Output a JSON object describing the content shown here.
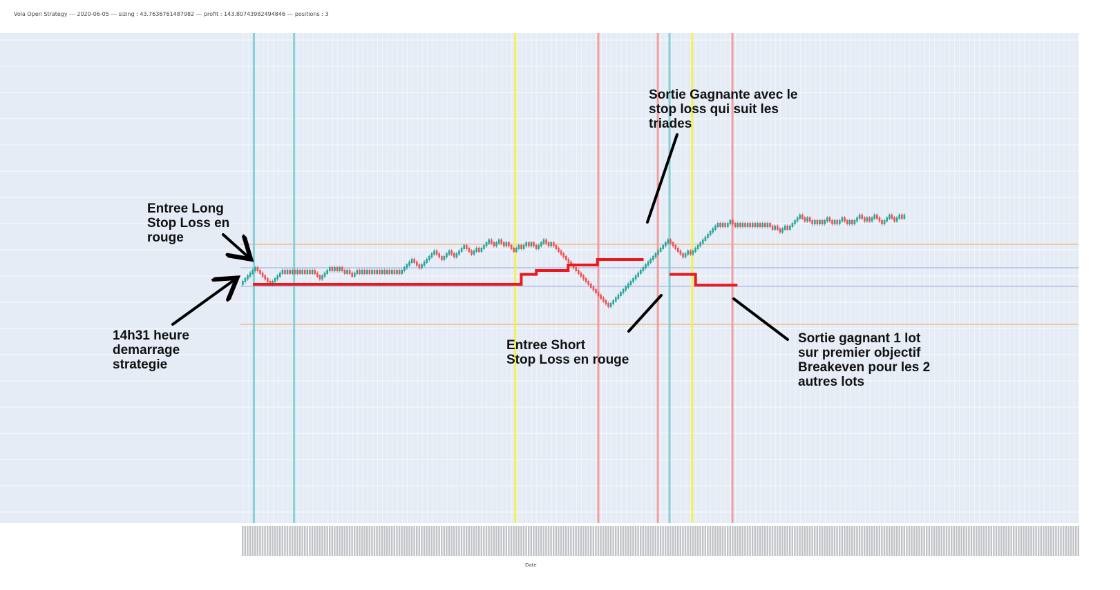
{
  "page": {
    "title": "Vola Open Strategy --- 2020-06-05 --- sizing : 43.7636761487982 --- profit : 143.80743982494846 --- positions : 3"
  },
  "colors": {
    "plot_bg": "#e5ecf6",
    "up_brick": "#26a69a",
    "down_brick": "#ef5350",
    "stop_loss": "#e8191f",
    "entry_long_line": "#7ecfd3",
    "entry_short_line": "#f4f142",
    "exit_line": "#f19a9a",
    "orange_level": "#f2b37a",
    "blue_level": "#a9b4e6",
    "arrow": "#000000"
  },
  "annotations": {
    "long": "Entree Long\nStop Loss en\nrouge",
    "start": "14h31 heure\ndemarrage\nstrategie",
    "short": "Entree Short\nStop Loss en rouge",
    "gagnante": "Sortie Gagnante avec le\nstop loss qui suit les\ntriades",
    "lot": "Sortie gagnant 1 lot\nsur premier objectif\nBreakeven pour les 2\nautres lots"
  },
  "chart_data": {
    "type": "renko",
    "xlabel": "Date",
    "ylabel": "",
    "grid": true,
    "legend": "none",
    "brick_size": 1,
    "levels": {
      "range_top": 23,
      "range_bottom": 3,
      "long_entry": 15,
      "short_entry": 11
    },
    "path": [
      [
        0,
        11
      ],
      [
        6,
        17
      ],
      [
        4,
        13
      ],
      [
        1,
        11
      ],
      [
        6,
        16
      ],
      [
        -1,
        15
      ],
      [
        1,
        16
      ],
      [
        -1,
        15
      ],
      [
        1,
        16
      ],
      [
        -1,
        15
      ],
      [
        1,
        16
      ],
      [
        -1,
        15
      ],
      [
        1,
        16
      ],
      [
        -1,
        15
      ],
      [
        1,
        16
      ],
      [
        -1,
        15
      ],
      [
        1,
        16
      ],
      [
        -3,
        13
      ],
      [
        4,
        17
      ],
      [
        -1,
        16
      ],
      [
        1,
        17
      ],
      [
        -1,
        16
      ],
      [
        1,
        17
      ],
      [
        -2,
        15
      ],
      [
        1,
        16
      ],
      [
        -2,
        14
      ],
      [
        2,
        16
      ],
      [
        -1,
        15
      ],
      [
        1,
        16
      ],
      [
        -1,
        15
      ],
      [
        1,
        16
      ],
      [
        -1,
        15
      ],
      [
        1,
        16
      ],
      [
        -1,
        15
      ],
      [
        1,
        16
      ],
      [
        -1,
        15
      ],
      [
        1,
        16
      ],
      [
        -1,
        15
      ],
      [
        1,
        16
      ],
      [
        -1,
        15
      ],
      [
        1,
        16
      ],
      [
        -1,
        15
      ],
      [
        1,
        16
      ],
      [
        -1,
        15
      ],
      [
        1,
        16
      ],
      [
        4,
        20
      ],
      [
        -3,
        17
      ],
      [
        6,
        23
      ],
      [
        -3,
        20
      ],
      [
        3,
        23
      ],
      [
        -2,
        21
      ],
      [
        4,
        25
      ],
      [
        -3,
        22
      ],
      [
        2,
        24
      ],
      [
        -1,
        23
      ],
      [
        4,
        27
      ],
      [
        -2,
        25
      ],
      [
        2,
        27
      ],
      [
        -2,
        25
      ],
      [
        1,
        26
      ],
      [
        -3,
        23
      ],
      [
        2,
        25
      ],
      [
        -1,
        24
      ],
      [
        2,
        26
      ],
      [
        -1,
        25
      ],
      [
        1,
        26
      ],
      [
        -2,
        24
      ],
      [
        3,
        27
      ],
      [
        -2,
        25
      ],
      [
        1,
        26
      ],
      [
        -4,
        22
      ],
      [
        -6,
        16
      ],
      [
        -6,
        10
      ],
      [
        -3,
        7
      ],
      [
        -3,
        4
      ],
      [
        -1,
        3
      ],
      [
        2,
        5
      ],
      [
        9,
        14
      ],
      [
        5,
        19
      ],
      [
        6,
        25
      ],
      [
        2,
        27
      ],
      [
        -4,
        23
      ],
      [
        -2,
        21
      ],
      [
        2,
        23
      ],
      [
        -1,
        22
      ],
      [
        2,
        24
      ],
      [
        3,
        27
      ],
      [
        3,
        30
      ],
      [
        3,
        33
      ],
      [
        -1,
        32
      ],
      [
        1,
        33
      ],
      [
        -1,
        32
      ],
      [
        2,
        34
      ],
      [
        -2,
        32
      ],
      [
        1,
        33
      ],
      [
        -1,
        32
      ],
      [
        1,
        33
      ],
      [
        -1,
        32
      ],
      [
        1,
        33
      ],
      [
        -1,
        32
      ],
      [
        1,
        33
      ],
      [
        -1,
        32
      ],
      [
        1,
        33
      ],
      [
        -1,
        32
      ],
      [
        1,
        33
      ],
      [
        -1,
        32
      ],
      [
        1,
        33
      ],
      [
        -2,
        31
      ],
      [
        1,
        32
      ],
      [
        -2,
        30
      ],
      [
        2,
        32
      ],
      [
        -1,
        31
      ],
      [
        1,
        32
      ],
      [
        4,
        36
      ],
      [
        -2,
        34
      ],
      [
        1,
        35
      ],
      [
        -2,
        33
      ],
      [
        1,
        34
      ],
      [
        -1,
        33
      ],
      [
        1,
        34
      ],
      [
        -1,
        33
      ],
      [
        2,
        35
      ],
      [
        -2,
        33
      ],
      [
        1,
        34
      ],
      [
        -1,
        33
      ],
      [
        2,
        35
      ],
      [
        -2,
        33
      ],
      [
        1,
        34
      ],
      [
        -1,
        33
      ],
      [
        3,
        36
      ],
      [
        -2,
        34
      ],
      [
        1,
        35
      ],
      [
        -1,
        34
      ],
      [
        2,
        36
      ],
      [
        -2,
        34
      ],
      [
        -1,
        33
      ],
      [
        3,
        36
      ],
      [
        -2,
        34
      ],
      [
        2,
        36
      ],
      [
        -1,
        35
      ],
      [
        1,
        36
      ]
    ],
    "stop_loss": [
      {
        "name": "long",
        "points": [
          [
            0.015,
            11
          ],
          [
            0.335,
            11
          ],
          [
            0.335,
            14.6
          ],
          [
            0.353,
            14.6
          ],
          [
            0.353,
            16
          ],
          [
            0.391,
            16
          ],
          [
            0.391,
            18
          ],
          [
            0.426,
            18
          ],
          [
            0.426,
            20
          ],
          [
            0.481,
            20
          ]
        ]
      },
      {
        "name": "short",
        "points": [
          [
            0.512,
            14.6
          ],
          [
            0.543,
            14.6
          ],
          [
            0.543,
            10.7
          ],
          [
            0.593,
            10.7
          ]
        ]
      }
    ],
    "markers": [
      {
        "type": "entry_long",
        "pos": 0.016
      },
      {
        "type": "entry_long",
        "pos": 0.064
      },
      {
        "type": "entry_short",
        "pos": 0.328
      },
      {
        "type": "exit",
        "pos": 0.427
      },
      {
        "type": "exit",
        "pos": 0.498
      },
      {
        "type": "entry_long",
        "pos": 0.512
      },
      {
        "type": "entry_short",
        "pos": 0.539
      },
      {
        "type": "exit",
        "pos": 0.587
      }
    ]
  }
}
